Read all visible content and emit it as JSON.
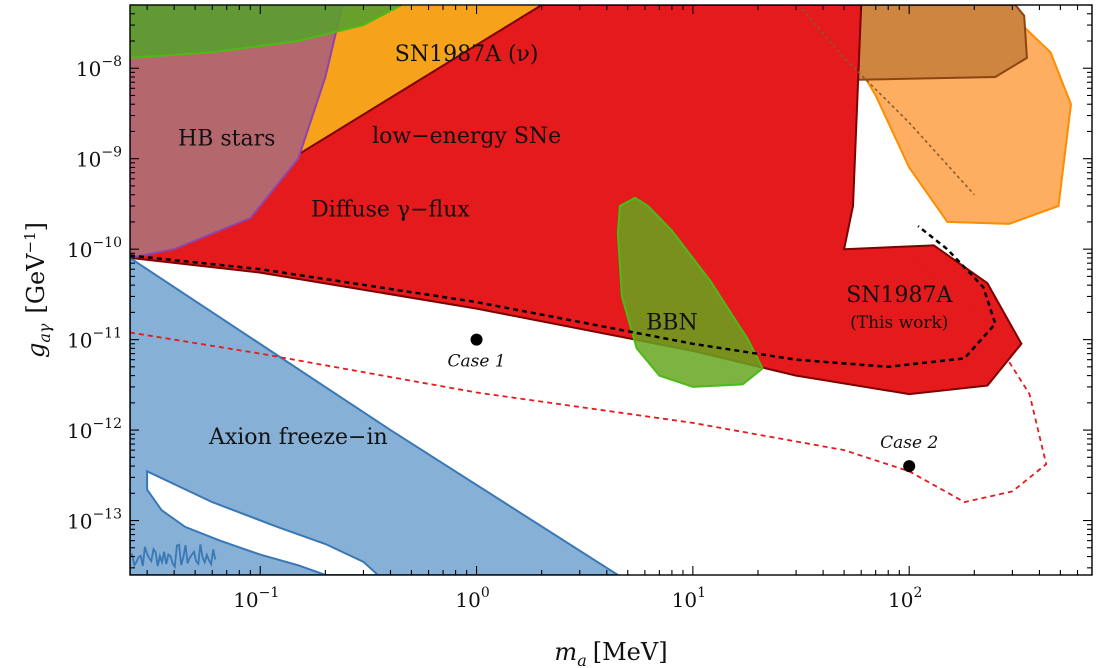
{
  "chart_data": {
    "type": "area",
    "title": "",
    "xlabel": "m",
    "xlabel_sub": "a",
    "xlabel_unit": "[MeV]",
    "ylabel": "g",
    "ylabel_sub": "aγ",
    "ylabel_unit": "[GeV",
    "ylabel_unit_exp": "−1",
    "ylabel_unit_close": "]",
    "x_scale": "log",
    "y_scale": "log",
    "xlim": [
      0.025,
      700
    ],
    "ylim": [
      2.5e-14,
      5e-08
    ],
    "x_ticks": [
      {
        "value": 0.1,
        "base": "10",
        "exp": "−1"
      },
      {
        "value": 1,
        "base": "10",
        "exp": "0"
      },
      {
        "value": 10,
        "base": "10",
        "exp": "1"
      },
      {
        "value": 100,
        "base": "10",
        "exp": "2"
      }
    ],
    "y_ticks": [
      {
        "value": 1e-13,
        "base": "10",
        "exp": "−13"
      },
      {
        "value": 1e-12,
        "base": "10",
        "exp": "−12"
      },
      {
        "value": 1e-11,
        "base": "10",
        "exp": "−11"
      },
      {
        "value": 1e-10,
        "base": "10",
        "exp": "−10"
      },
      {
        "value": 1e-09,
        "base": "10",
        "exp": "−9"
      },
      {
        "value": 1e-08,
        "base": "10",
        "exp": "−8"
      }
    ],
    "regions": [
      {
        "id": "low-energy-sne",
        "label": "low−energy SNe",
        "fill": "#fdae61",
        "stroke": "#ff8c00",
        "label_pos": [
          0.9,
          1.5e-09
        ],
        "points": [
          [
            32,
            5e-08
          ],
          [
            70,
            5e-08
          ],
          [
            300,
            3.8e-08
          ],
          [
            450,
            1.5e-08
          ],
          [
            560,
            4e-09
          ],
          [
            490,
            3e-10
          ],
          [
            290,
            1.9e-10
          ],
          [
            150,
            2e-10
          ],
          [
            100,
            8e-10
          ],
          [
            70,
            5e-09
          ],
          [
            45,
            3e-08
          ]
        ]
      },
      {
        "id": "sn1987a-nu",
        "label": "SN1987A (ν)",
        "fill": "#cd853f",
        "stroke": "#8b4513",
        "label_pos": [
          0.9,
          1.2e-08
        ],
        "points": [
          [
            0.025,
            1.1e-08
          ],
          [
            0.025,
            5e-08
          ],
          [
            310,
            5e-08
          ],
          [
            340,
            3.8e-08
          ],
          [
            350,
            1.3e-08
          ],
          [
            250,
            8e-09
          ],
          [
            3,
            6.5e-09
          ],
          [
            0.2,
            6.3e-09
          ],
          [
            0.07,
            6.2e-09
          ],
          [
            0.025,
            6.2e-09
          ]
        ]
      },
      {
        "id": "diffuse-gamma",
        "label": "Diffuse γ−flux",
        "fill": "#f6a21a",
        "stroke": "#ffe033",
        "label_pos": [
          0.4,
          2.3e-10
        ],
        "points": [
          [
            0.13,
            5e-08
          ],
          [
            3,
            5e-08
          ],
          [
            45,
            1.2e-09
          ],
          [
            50,
            1.8e-10
          ],
          [
            48,
            1e-10
          ],
          [
            0.07,
            1e-10
          ],
          [
            0.16,
            6e-10
          ]
        ]
      },
      {
        "id": "sn1987a-this-work",
        "label": "SN1987A",
        "sublabel": "(This work)",
        "fill": "#e41a1c",
        "stroke": "#7f0000",
        "label_pos": [
          90,
          2.6e-11
        ],
        "label_sub_pos": [
          90,
          1.35e-11
        ],
        "points": [
          [
            0.025,
            8e-11
          ],
          [
            0.1,
            5.5e-11
          ],
          [
            1,
            2.2e-11
          ],
          [
            10,
            7.5e-12
          ],
          [
            30,
            4e-12
          ],
          [
            100,
            2.5e-12
          ],
          [
            230,
            3.1e-12
          ],
          [
            330,
            9e-12
          ],
          [
            230,
            4.2e-11
          ],
          [
            130,
            1.1e-10
          ],
          [
            50,
            1e-10
          ],
          [
            55,
            3e-10
          ],
          [
            60,
            5e-08
          ],
          [
            2,
            5e-08
          ]
        ]
      },
      {
        "id": "hb-stars",
        "label": "HB stars",
        "fill": "#b5676e",
        "stroke": "#8e44ad",
        "label_pos": [
          0.07,
          1.4e-09
        ],
        "points": [
          [
            0.025,
            5e-08
          ],
          [
            0.24,
            5e-08
          ],
          [
            0.2,
            8e-09
          ],
          [
            0.15,
            1e-09
          ],
          [
            0.09,
            2.2e-10
          ],
          [
            0.04,
            1e-10
          ],
          [
            0.025,
            8e-11
          ]
        ]
      },
      {
        "id": "bbn",
        "label": "BBN",
        "fill": "#66a61e",
        "stroke": "#4cbb17",
        "opacity": 0.85,
        "label_pos": [
          8,
          1.3e-11
        ],
        "points": [
          [
            4.6,
            3e-10
          ],
          [
            5.4,
            3.7e-10
          ],
          [
            6.2,
            3e-10
          ],
          [
            8,
            1.6e-10
          ],
          [
            12,
            4.5e-11
          ],
          [
            18,
            1e-11
          ],
          [
            21,
            4.8e-12
          ],
          [
            17,
            3.2e-12
          ],
          [
            10,
            3e-12
          ],
          [
            7,
            4e-12
          ],
          [
            5.5,
            8e-12
          ],
          [
            4.7,
            3e-11
          ],
          [
            4.5,
            1.5e-10
          ]
        ]
      },
      {
        "id": "green-top",
        "label": "",
        "fill": "#5a9e2e",
        "stroke": "#4cbb17",
        "opacity": 0.9,
        "points": [
          [
            0.025,
            5e-08
          ],
          [
            0.45,
            5e-08
          ],
          [
            0.3,
            3e-08
          ],
          [
            0.15,
            2e-08
          ],
          [
            0.06,
            1.5e-08
          ],
          [
            0.025,
            1.3e-08
          ]
        ]
      },
      {
        "id": "axion-freeze-in",
        "label": "Axion freeze−in",
        "fill": "#86b0d6",
        "stroke": "#3a78b5",
        "label_pos": [
          0.15,
          7e-13
        ],
        "points": [
          [
            0.025,
            2.5e-14
          ],
          [
            0.025,
            8e-11
          ],
          [
            0.4,
            1e-12
          ],
          [
            4.5,
            2.5e-14
          ]
        ]
      }
    ],
    "cutouts": [
      {
        "id": "freeze-in-gap",
        "points": [
          [
            0.03,
            3.5e-13
          ],
          [
            0.06,
            1.6e-13
          ],
          [
            0.12,
            8.5e-14
          ],
          [
            0.2,
            5.5e-14
          ],
          [
            0.3,
            3.5e-14
          ],
          [
            0.35,
            2.5e-14
          ],
          [
            0.2,
            2.5e-14
          ],
          [
            0.15,
            3.2e-14
          ],
          [
            0.1,
            4.2e-14
          ],
          [
            0.065,
            6e-14
          ],
          [
            0.045,
            8.5e-14
          ],
          [
            0.035,
            1.3e-13
          ],
          [
            0.03,
            2.2e-13
          ]
        ]
      }
    ],
    "noise_lines": [
      {
        "id": "freeze-in-noise",
        "stroke": "#3a78b5",
        "x_range": [
          0.025,
          0.062
        ],
        "y_range": [
          3e-14,
          5.5e-14
        ]
      }
    ],
    "lines": [
      {
        "id": "this-work-dashed-black",
        "stroke": "#000000",
        "dash": "5,4",
        "width": 2.5,
        "points": [
          [
            0.025,
            8.5e-11
          ],
          [
            0.1,
            6e-11
          ],
          [
            1,
            2.6e-11
          ],
          [
            10,
            9e-12
          ],
          [
            30,
            6e-12
          ],
          [
            80,
            5e-12
          ],
          [
            180,
            6.2e-12
          ],
          [
            250,
            1.5e-11
          ],
          [
            220,
            3.8e-11
          ],
          [
            150,
            1e-10
          ],
          [
            110,
            1.8e-10
          ]
        ]
      },
      {
        "id": "projection-dashed-red",
        "stroke": "#e41a1c",
        "dash": "5,4",
        "width": 1.8,
        "points": [
          [
            0.025,
            1.2e-11
          ],
          [
            0.1,
            7e-12
          ],
          [
            1,
            2.6e-12
          ],
          [
            10,
            1.2e-12
          ],
          [
            50,
            6e-13
          ],
          [
            100,
            3.5e-13
          ],
          [
            180,
            1.6e-13
          ],
          [
            300,
            2.1e-13
          ],
          [
            430,
            4.2e-13
          ],
          [
            360,
            2.5e-12
          ],
          [
            220,
            1.6e-11
          ],
          [
            100,
            8e-11
          ]
        ]
      },
      {
        "id": "sn1987a-nu-edge-dashed",
        "stroke": "#8b5a2b",
        "dash": "3,3",
        "width": 1.6,
        "points": [
          [
            32,
            4.5e-08
          ],
          [
            50,
            1.3e-08
          ],
          [
            100,
            2.5e-09
          ],
          [
            200,
            4e-10
          ]
        ]
      }
    ],
    "points": [
      {
        "id": "case-1",
        "label": "Case 1",
        "x": 1,
        "y": 1e-11,
        "label_offset": "below"
      },
      {
        "id": "case-2",
        "label": "Case 2",
        "x": 100,
        "y": 4e-13,
        "label_offset": "above"
      }
    ],
    "grid": false
  }
}
